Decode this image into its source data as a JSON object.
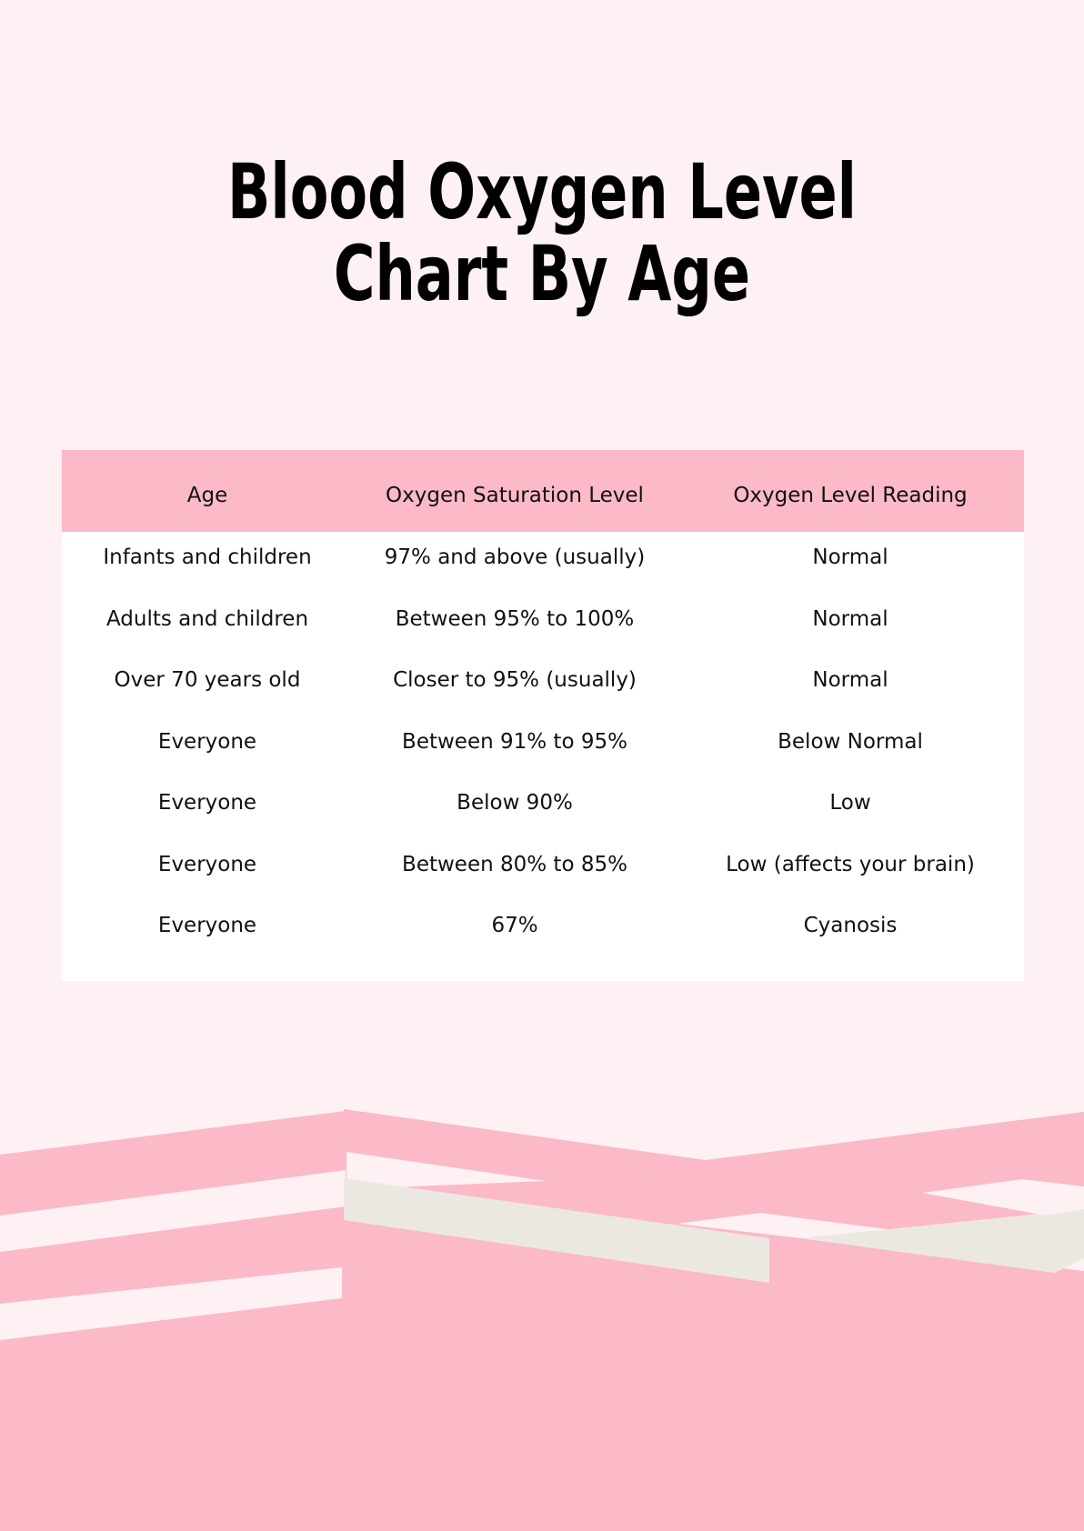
{
  "title": {
    "line1": "Blood Oxygen Level",
    "line2": "Chart By Age"
  },
  "table": {
    "headers": [
      "Age",
      "Oxygen Saturation Level",
      "Oxygen Level Reading"
    ],
    "rows": [
      [
        "Infants and children",
        "97% and above (usually)",
        "Normal"
      ],
      [
        "Adults and children",
        "Between 95% to 100%",
        "Normal"
      ],
      [
        "Over 70 years old",
        "Closer to 95% (usually)",
        "Normal"
      ],
      [
        "Everyone",
        "Between 91% to 95%",
        "Below Normal"
      ],
      [
        "Everyone",
        "Below 90%",
        "Low"
      ],
      [
        "Everyone",
        "Between 80% to 85%",
        "Low (affects your brain)"
      ],
      [
        "Everyone",
        "67%",
        "Cyanosis"
      ]
    ]
  },
  "colors": {
    "background": "#fdf1f3",
    "accent_pink": "#fcb9c8",
    "beige": "#ebe8e2",
    "white": "#ffffff"
  }
}
